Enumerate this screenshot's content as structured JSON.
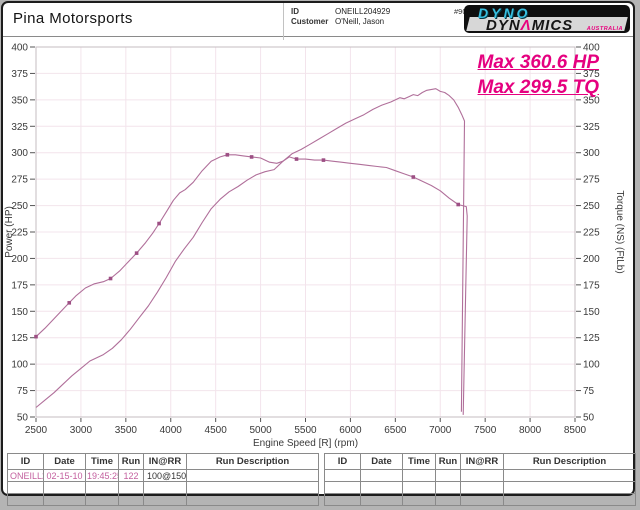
{
  "header": {
    "shop_name": "Pina Motorsports",
    "id_label": "ID",
    "id_value": "ONEILL204929",
    "customer_label": "Customer",
    "customer_value": "O'Neill, Jason",
    "sheet_number": "#903",
    "logo": {
      "top_word": "DYNO",
      "band_pre": "DYN",
      "band_accent": "Λ",
      "band_post": "MICS",
      "country": "AUSTRALIA",
      "cyan": "#38bedf",
      "pink": "#e8007d"
    }
  },
  "annotations": {
    "max_hp": "Max 360.6 HP",
    "max_tq": "Max 299.5 TQ",
    "color": "#e5007f"
  },
  "chart_data": {
    "type": "line",
    "title": "",
    "xlabel": "Engine Speed [R] (rpm)",
    "ylabel_left": "Power (HP)",
    "ylabel_right": "Torque (NS) (FtLb)",
    "xlim": [
      2500,
      8500
    ],
    "xstep": 500,
    "ylim": [
      50,
      400
    ],
    "ystep": 25,
    "grid": true,
    "legend": "none",
    "curve_color": "#b06f9a",
    "marker_color": "#9d4f84",
    "max_hp": 360.6,
    "max_tq": 299.5,
    "series": [
      {
        "name": "Power (HP)",
        "axis": "left",
        "points": [
          [
            2500,
            59
          ],
          [
            2600,
            66
          ],
          [
            2700,
            73
          ],
          [
            2800,
            81
          ],
          [
            2900,
            89
          ],
          [
            3000,
            96
          ],
          [
            3100,
            103
          ],
          [
            3150,
            105
          ],
          [
            3250,
            109
          ],
          [
            3350,
            115
          ],
          [
            3450,
            123
          ],
          [
            3550,
            133
          ],
          [
            3650,
            144
          ],
          [
            3750,
            155
          ],
          [
            3850,
            168
          ],
          [
            3950,
            182
          ],
          [
            4050,
            197
          ],
          [
            4150,
            209
          ],
          [
            4250,
            220
          ],
          [
            4350,
            234
          ],
          [
            4450,
            247
          ],
          [
            4550,
            256
          ],
          [
            4650,
            263
          ],
          [
            4750,
            268
          ],
          [
            4850,
            274
          ],
          [
            4950,
            279
          ],
          [
            5050,
            282
          ],
          [
            5150,
            284
          ],
          [
            5250,
            292
          ],
          [
            5350,
            299
          ],
          [
            5450,
            303
          ],
          [
            5550,
            308
          ],
          [
            5650,
            313
          ],
          [
            5750,
            318
          ],
          [
            5850,
            323
          ],
          [
            5950,
            328
          ],
          [
            6050,
            332
          ],
          [
            6150,
            336
          ],
          [
            6250,
            341
          ],
          [
            6350,
            345
          ],
          [
            6450,
            348
          ],
          [
            6550,
            352
          ],
          [
            6600,
            351
          ],
          [
            6650,
            353
          ],
          [
            6700,
            355
          ],
          [
            6750,
            354
          ],
          [
            6800,
            357
          ],
          [
            6850,
            359
          ],
          [
            6950,
            360.6
          ],
          [
            7000,
            358
          ],
          [
            7050,
            357
          ],
          [
            7100,
            354
          ],
          [
            7150,
            350
          ],
          [
            7200,
            343
          ],
          [
            7240,
            336
          ],
          [
            7270,
            330
          ],
          [
            7235,
            55
          ]
        ]
      },
      {
        "name": "Torque (FtLb)",
        "axis": "right",
        "points": [
          [
            2500,
            126
          ],
          [
            2600,
            134
          ],
          [
            2700,
            143
          ],
          [
            2800,
            152
          ],
          [
            2870,
            158
          ],
          [
            2950,
            165
          ],
          [
            3050,
            172
          ],
          [
            3150,
            176
          ],
          [
            3250,
            178
          ],
          [
            3330,
            181
          ],
          [
            3430,
            188
          ],
          [
            3530,
            197
          ],
          [
            3620,
            205
          ],
          [
            3720,
            215
          ],
          [
            3800,
            224
          ],
          [
            3870,
            233
          ],
          [
            3950,
            244
          ],
          [
            4030,
            255
          ],
          [
            4100,
            262
          ],
          [
            4160,
            265
          ],
          [
            4250,
            272
          ],
          [
            4350,
            283
          ],
          [
            4450,
            292
          ],
          [
            4550,
            296
          ],
          [
            4630,
            298
          ],
          [
            4720,
            298
          ],
          [
            4810,
            297
          ],
          [
            4900,
            296
          ],
          [
            5000,
            295
          ],
          [
            5100,
            291
          ],
          [
            5180,
            290
          ],
          [
            5250,
            292
          ],
          [
            5320,
            296
          ],
          [
            5400,
            294
          ],
          [
            5500,
            294
          ],
          [
            5600,
            293
          ],
          [
            5700,
            293
          ],
          [
            5800,
            292
          ],
          [
            5900,
            291
          ],
          [
            6000,
            290
          ],
          [
            6100,
            289
          ],
          [
            6200,
            288
          ],
          [
            6300,
            287
          ],
          [
            6400,
            286
          ],
          [
            6500,
            283
          ],
          [
            6600,
            280
          ],
          [
            6700,
            277
          ],
          [
            6800,
            273
          ],
          [
            6900,
            269
          ],
          [
            7000,
            264
          ],
          [
            7100,
            257
          ],
          [
            7200,
            251
          ],
          [
            7290,
            249
          ],
          [
            7300,
            240
          ],
          [
            7255,
            52
          ]
        ],
        "markers": [
          [
            2500,
            126
          ],
          [
            2870,
            158
          ],
          [
            3330,
            181
          ],
          [
            3620,
            205
          ],
          [
            3870,
            233
          ],
          [
            4630,
            298
          ],
          [
            4900,
            296
          ],
          [
            5400,
            294
          ],
          [
            5700,
            293
          ],
          [
            6700,
            277
          ],
          [
            7200,
            251
          ]
        ]
      }
    ]
  },
  "tables": {
    "headers": [
      "ID",
      "Date",
      "Time",
      "Run",
      "IN@RR",
      "Run Description"
    ],
    "left_rows": [
      {
        "cells": [
          "ONEILL20",
          "02-15-10",
          "19:45:25",
          "122",
          "100@150",
          ""
        ],
        "styles": [
          "pink",
          "pink",
          "pink",
          "pink",
          "dark",
          ""
        ]
      },
      {
        "cells": [
          "",
          "",
          "",
          "",
          "",
          ""
        ]
      },
      {
        "cells": [
          "",
          "",
          "",
          "",
          "",
          ""
        ]
      }
    ],
    "right_rows": [
      {
        "cells": [
          "",
          "",
          "",
          "",
          "",
          ""
        ]
      },
      {
        "cells": [
          "",
          "",
          "",
          "",
          "",
          ""
        ]
      },
      {
        "cells": [
          "",
          "",
          "",
          "",
          "",
          ""
        ]
      }
    ],
    "value_color": "#c35f9e"
  }
}
